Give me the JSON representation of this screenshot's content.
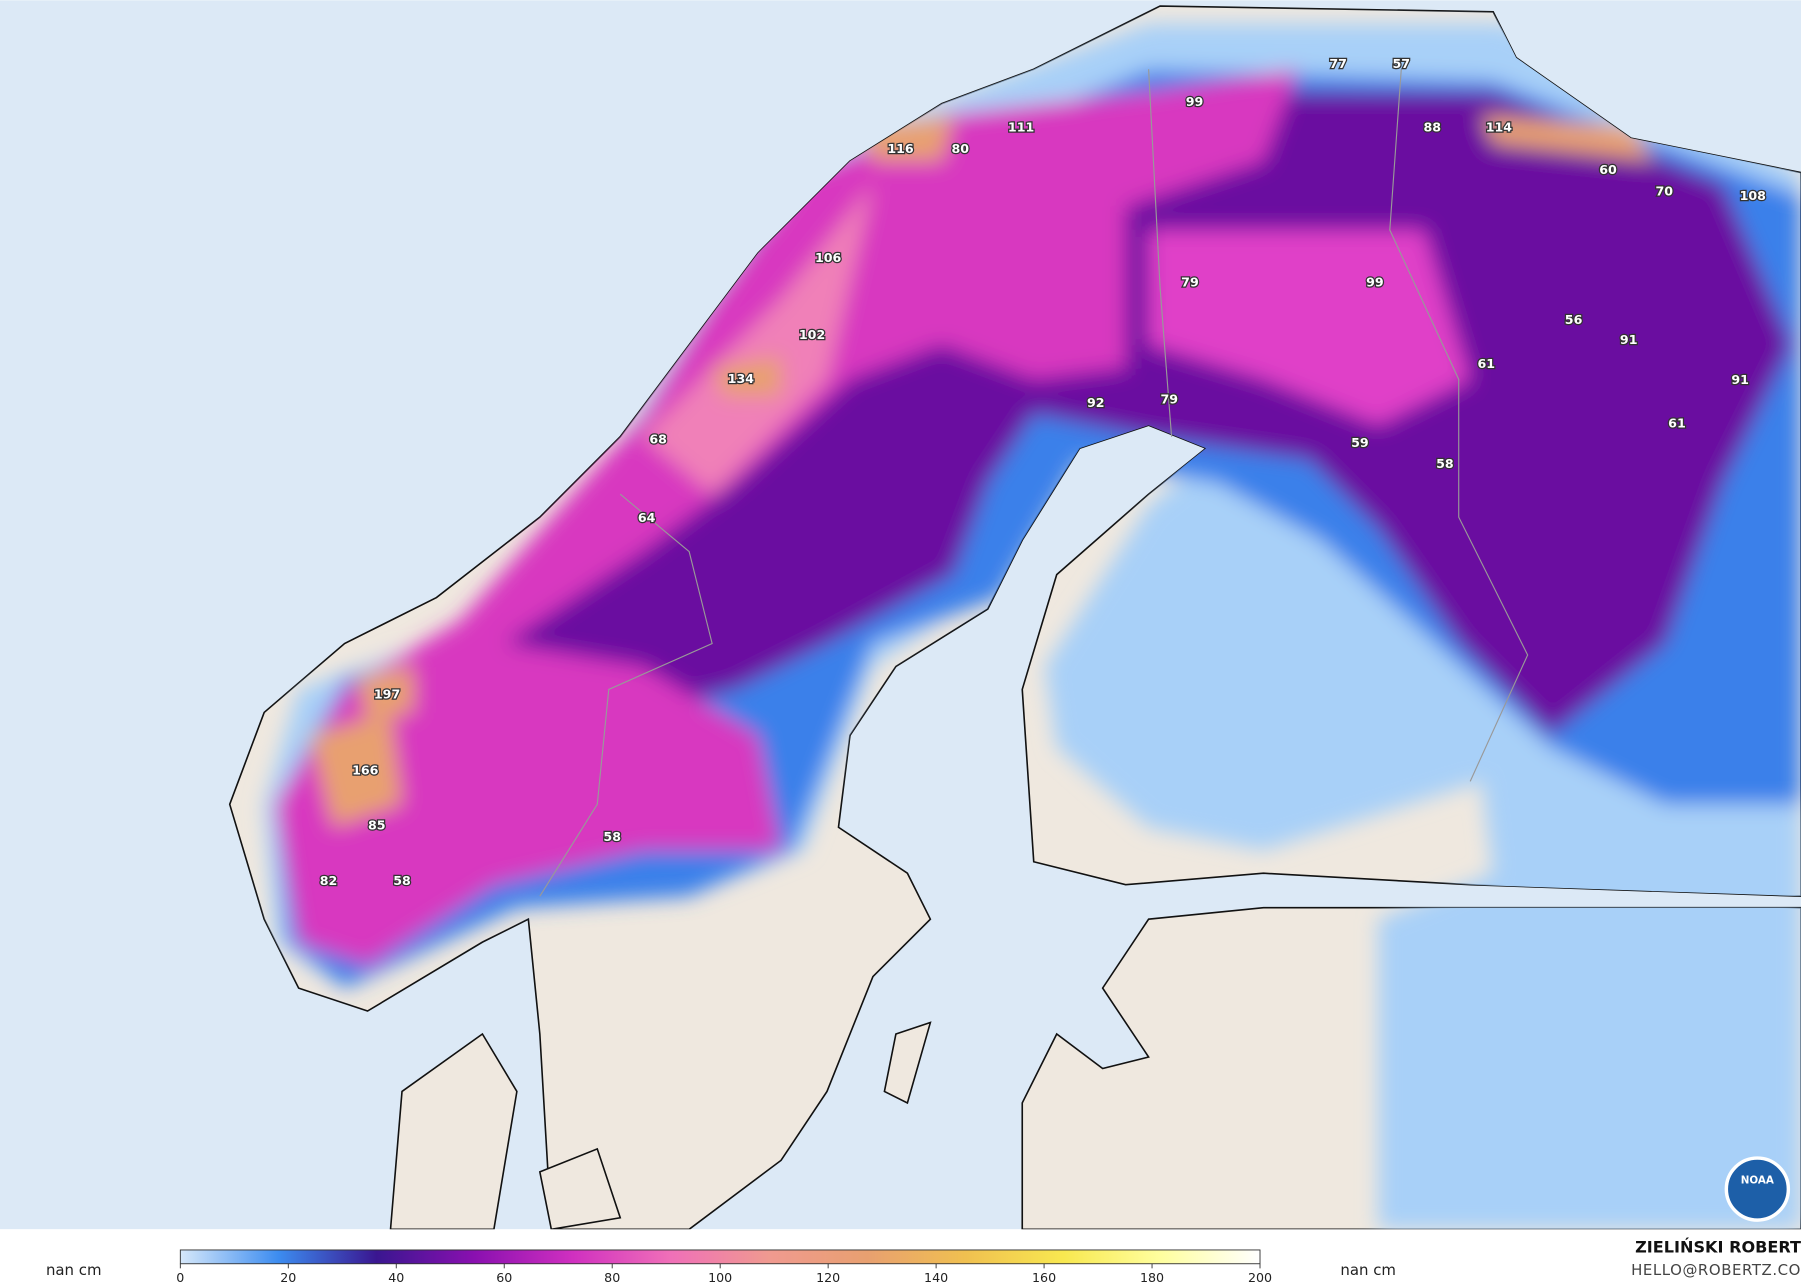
{
  "map": {
    "point_labels": [
      116,
      80,
      111,
      99,
      77,
      57,
      88,
      114,
      60,
      70,
      108,
      106,
      79,
      99,
      102,
      134,
      56,
      91,
      61,
      91,
      92,
      79,
      59,
      58,
      61,
      68,
      64,
      197,
      166,
      85,
      82,
      58,
      58
    ],
    "colorbar": {
      "label_left": "nan cm",
      "label_right": "nan cm",
      "lim": [
        0,
        200
      ],
      "ticks": [
        0,
        20,
        40,
        60,
        80,
        100,
        120,
        140,
        160,
        180,
        200
      ],
      "colors": [
        "#d6e8fa",
        "#3c8cf0",
        "#3a1690",
        "#8a10b0",
        "#d030c0",
        "#f070b8",
        "#f09a90",
        "#e8a070",
        "#f0c050",
        "#f8e850",
        "#ffffa0",
        "#ffffff"
      ]
    },
    "credit": {
      "author": "ZIELIŃSKI ROBERT",
      "contact": "HELLO@ROBERTZ.CO"
    },
    "logo": "NOAA"
  }
}
